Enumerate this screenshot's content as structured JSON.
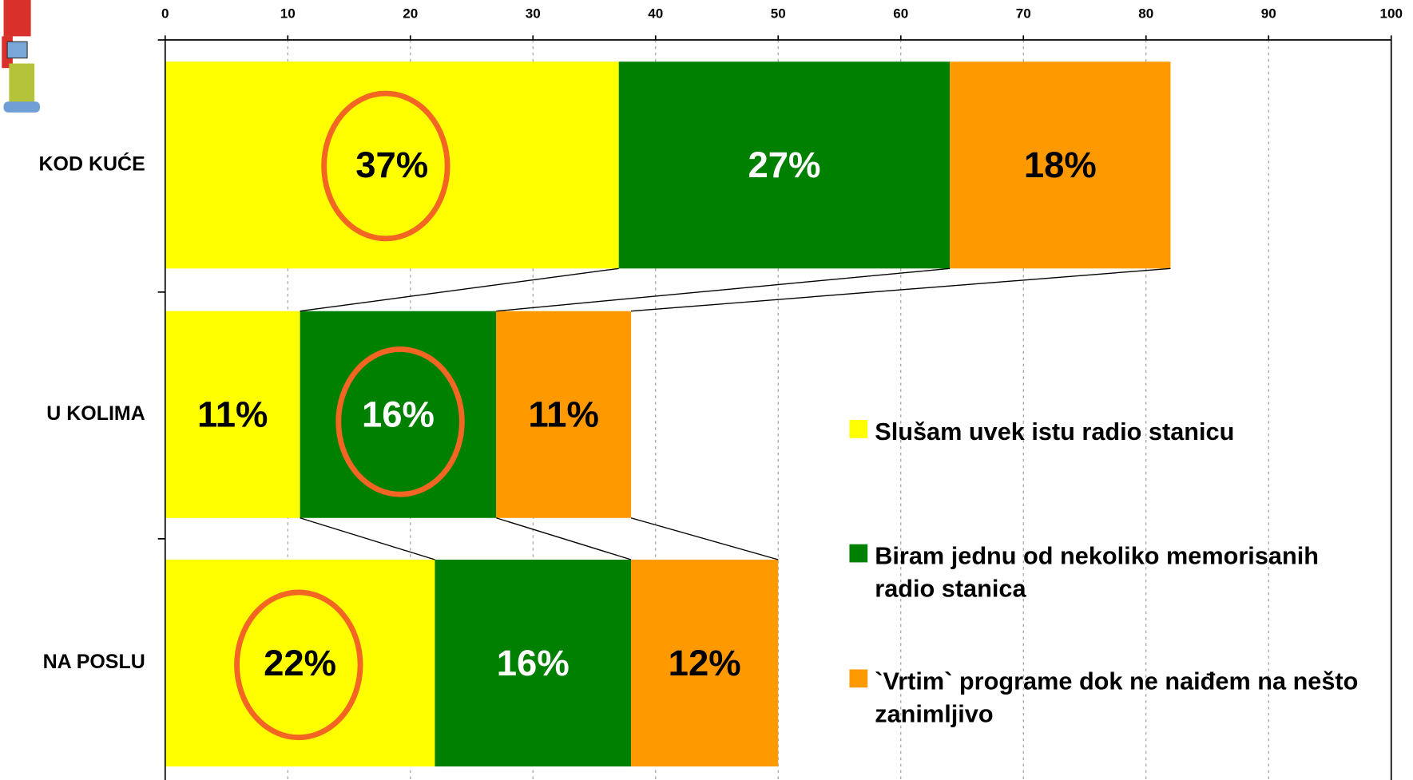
{
  "chart_data": {
    "type": "stacked-barh",
    "categories": [
      "KOD KUĆE",
      "U KOLIMA",
      "NA POSLU"
    ],
    "series": [
      {
        "name": "Slušam uvek istu radio stanicu",
        "color": "#ffff00",
        "label_color": "#000000",
        "values": [
          37,
          11,
          22
        ],
        "value_labels": [
          "37%",
          "11%",
          "22%"
        ]
      },
      {
        "name": "Biram jednu od nekoliko memorisanih radio stanica",
        "color": "#008000",
        "label_color": "#ffffff",
        "values": [
          27,
          16,
          16
        ],
        "value_labels": [
          "27%",
          "16%",
          "16%"
        ]
      },
      {
        "name": "`Vrtim` programe dok ne naiđem na nešto zanimljivo",
        "color": "#ff9900",
        "label_color": "#000000",
        "values": [
          18,
          11,
          12
        ],
        "value_labels": [
          "18%",
          "11%",
          "12%"
        ]
      }
    ],
    "xlim": [
      0,
      100
    ],
    "xticks": [
      0,
      10,
      20,
      30,
      40,
      50,
      60,
      70,
      80,
      90,
      100
    ],
    "grid": true
  }
}
